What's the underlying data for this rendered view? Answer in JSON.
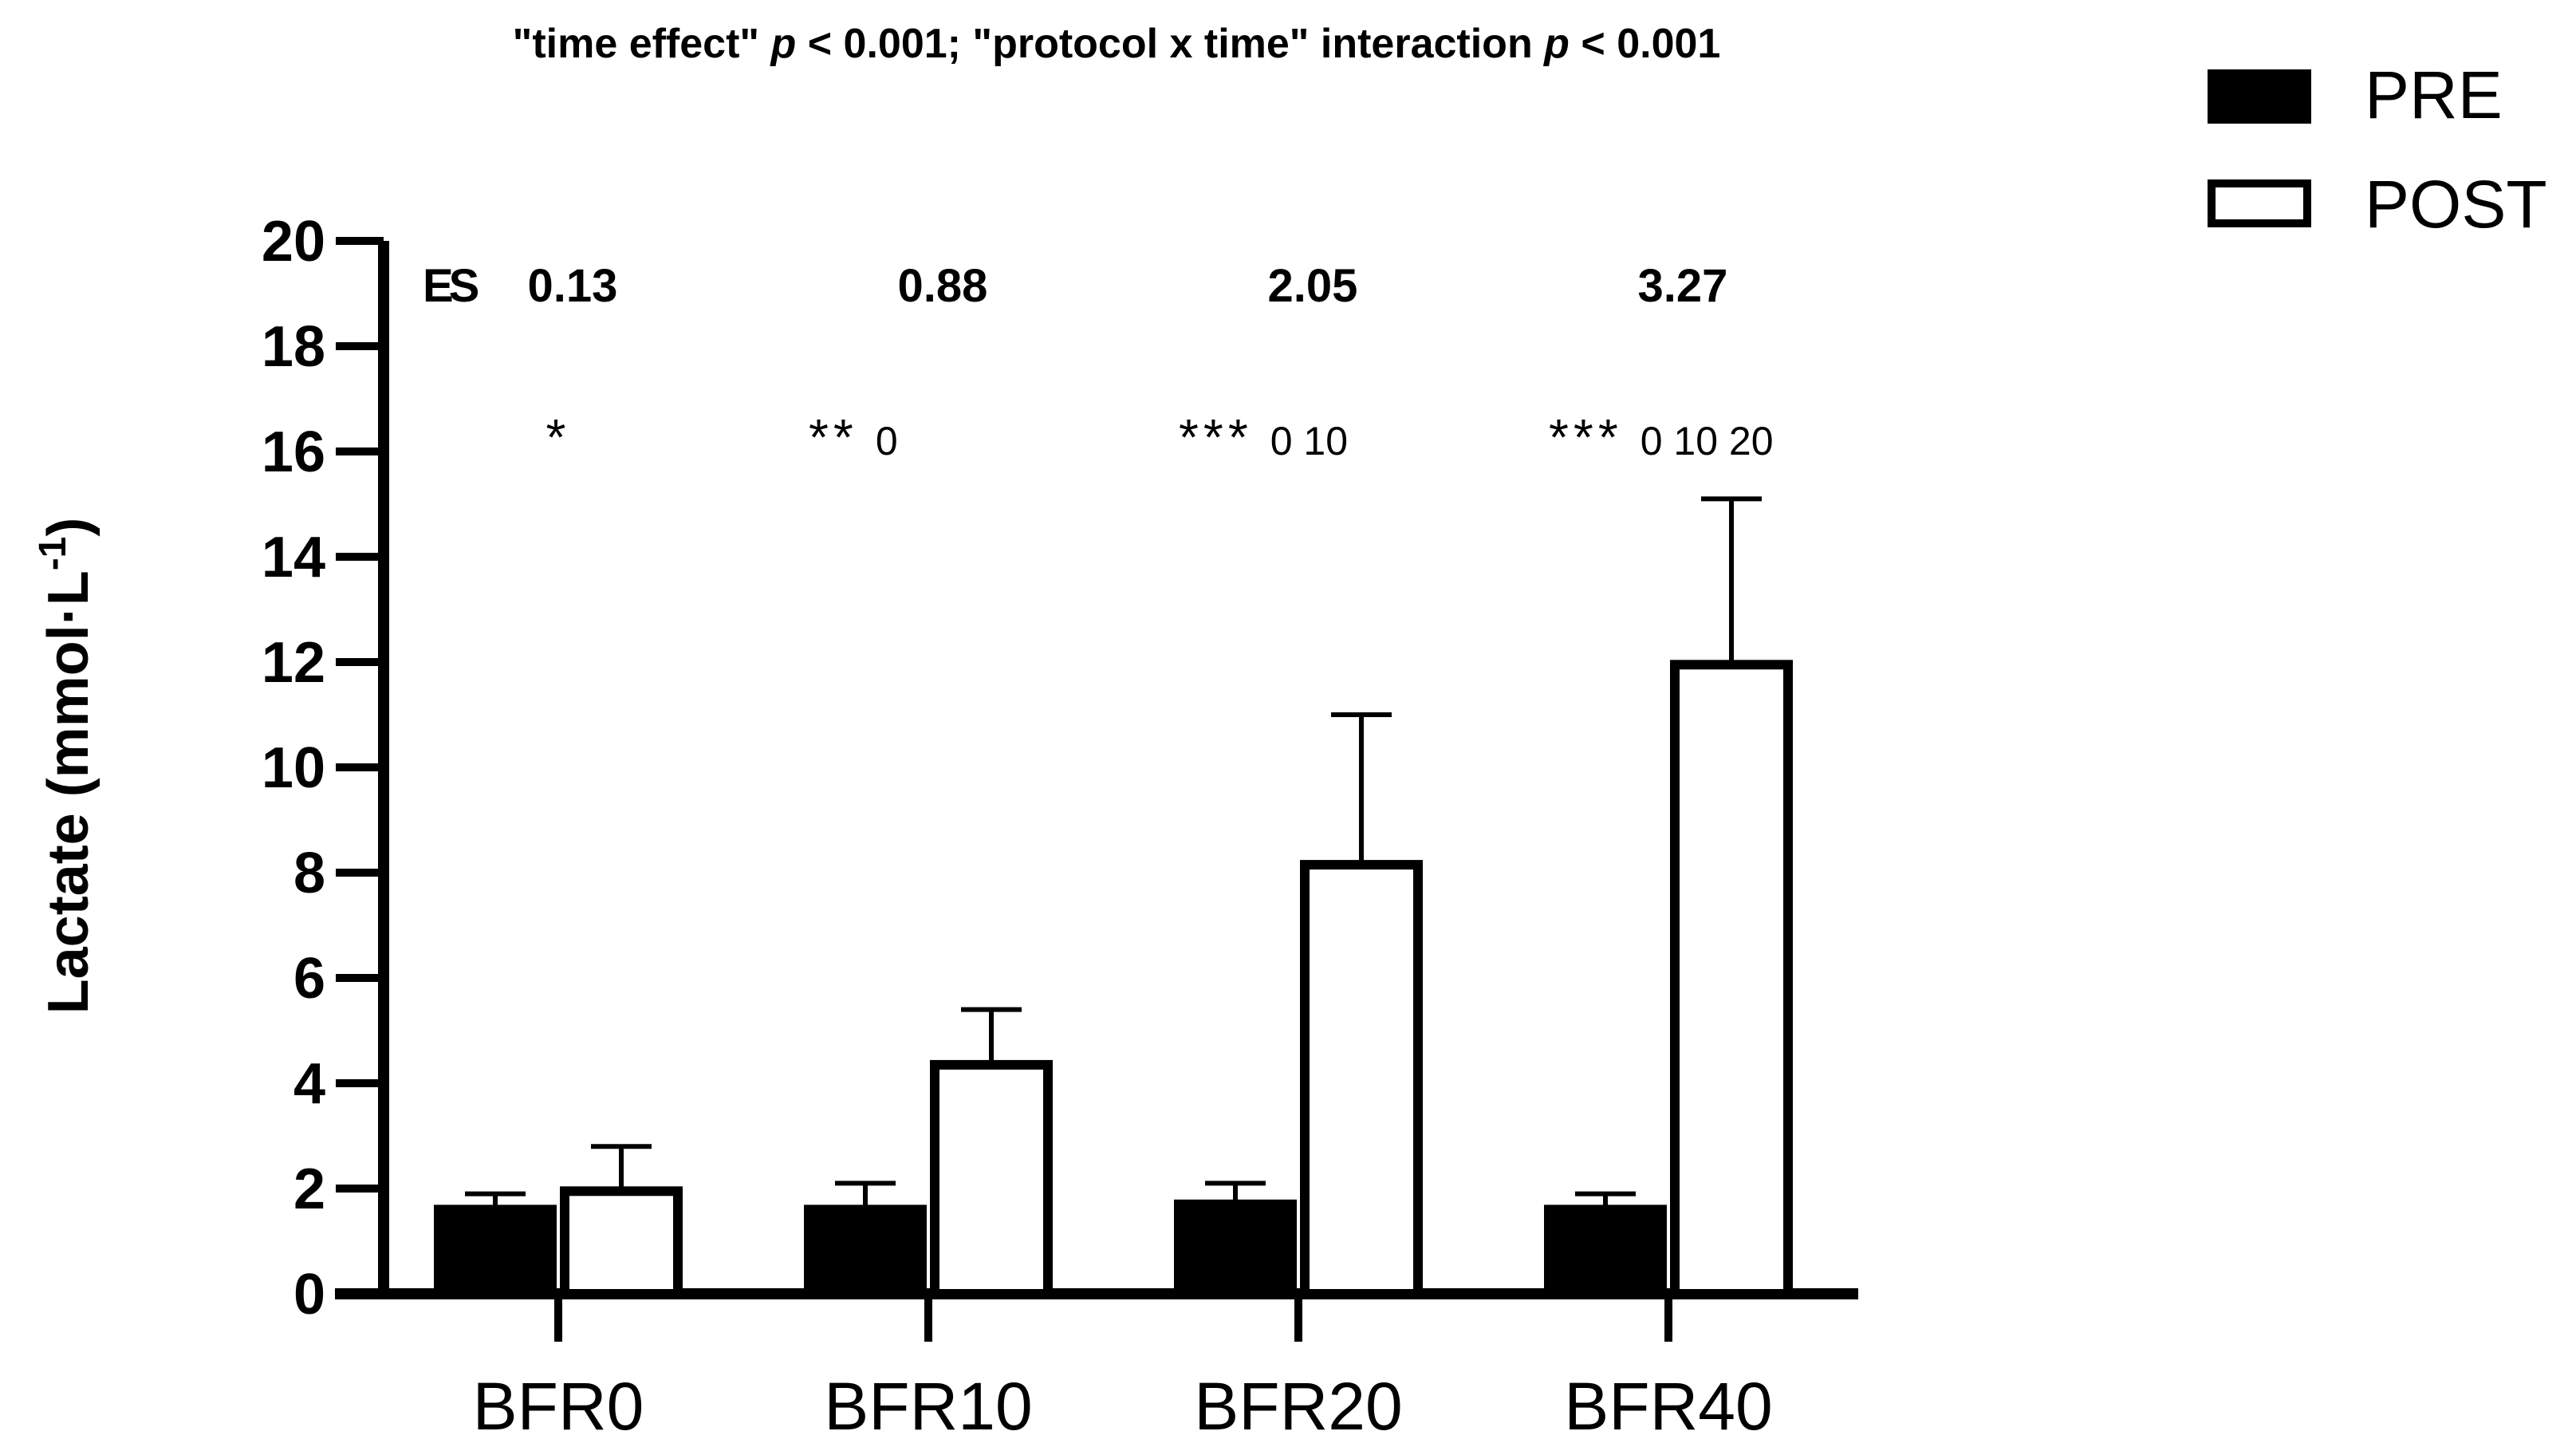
{
  "chart_data": {
    "type": "bar",
    "title": "\"time effect\"  p < 0.001; \"protocol x time\" interaction p < 0.001",
    "title_parts": [
      {
        "text": "\"time effect\"  ",
        "italic": false
      },
      {
        "text": "p",
        "italic": true
      },
      {
        "text": " < 0.001; \"protocol x time\" interaction ",
        "italic": false
      },
      {
        "text": "p",
        "italic": true
      },
      {
        "text": " < 0.001",
        "italic": false
      }
    ],
    "ylabel_main": "Lactate (mmol·L",
    "ylabel_sup": "-1",
    "ylabel_close": ")",
    "xlabel": "",
    "ylim": [
      0,
      20
    ],
    "yticks": [
      "0",
      "2",
      "4",
      "6",
      "8",
      "10",
      "12",
      "14",
      "16",
      "18",
      "20"
    ],
    "categories": [
      "BFR0",
      "BFR10",
      "BFR20",
      "BFR40"
    ],
    "series": [
      {
        "name": "PRE",
        "fill": "#000000",
        "values": [
          1.6,
          1.6,
          1.7,
          1.6
        ],
        "error": [
          0.3,
          0.5,
          0.4,
          0.3
        ]
      },
      {
        "name": "POST",
        "fill": "#ffffff",
        "values": [
          1.95,
          4.35,
          8.15,
          11.95
        ],
        "error": [
          0.85,
          1.05,
          2.85,
          3.15
        ]
      }
    ],
    "legend_position": "top-right",
    "effect_size_label": "ES",
    "effect_sizes": [
      "0.13",
      "0.88",
      "2.05",
      "3.27"
    ],
    "significance": [
      {
        "stars": "*",
        "refs": ""
      },
      {
        "stars": "**",
        "refs": "0"
      },
      {
        "stars": "***",
        "refs": "0 10"
      },
      {
        "stars": "***",
        "refs": "0 10 20"
      }
    ],
    "colors": {
      "ink": "#000000",
      "background": "#ffffff"
    }
  }
}
